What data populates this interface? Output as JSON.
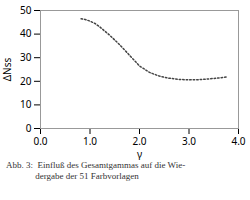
{
  "chart_data": {
    "type": "line",
    "title": "",
    "xlabel": "γ",
    "ylabel": "ΔNss",
    "caption": [
      "Abb. 3:  Einfluß des Gesamtgammas auf die Wie-",
      "             dergabe der 51 Farbvorlagen"
    ],
    "x": [
      0.82,
      0.9,
      1.0,
      1.1,
      1.2,
      1.4,
      1.6,
      1.8,
      2.0,
      2.2,
      2.4,
      2.6,
      2.8,
      3.0,
      3.2,
      3.4,
      3.6,
      3.75
    ],
    "values": [
      46.5,
      46.2,
      45.5,
      44.5,
      43.0,
      39.5,
      35.5,
      31.0,
      26.5,
      23.8,
      22.2,
      21.3,
      20.8,
      20.6,
      20.7,
      21.0,
      21.4,
      21.8
    ],
    "color": "#444444",
    "line_style": "dotted",
    "xlim": [
      0,
      4
    ],
    "ylim": [
      0,
      50
    ],
    "xticks": [
      0,
      1,
      2,
      3,
      4
    ],
    "yticks": [
      0,
      10,
      20,
      30,
      40,
      50
    ],
    "grid": false
  }
}
